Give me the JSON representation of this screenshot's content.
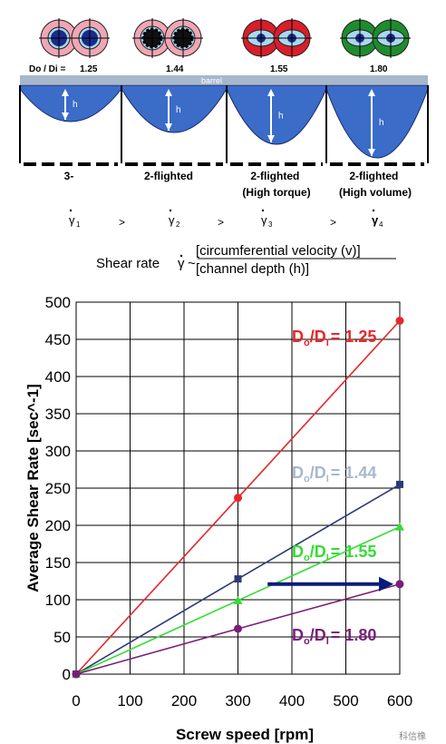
{
  "top": {
    "ratio_prefix": "Do / Di =",
    "ratios": [
      "1.25",
      "1.44",
      "1.55",
      "1.80"
    ],
    "barrel_label": "barrel",
    "channel_label": "h",
    "flight_labels": [
      [
        "3-"
      ],
      [
        "2-flighted"
      ],
      [
        "2-flighted",
        "(High torque)"
      ],
      [
        "2-flighted",
        "(High volume)"
      ]
    ],
    "gamma_symbol": "γ",
    "gamma_subscripts": [
      "1",
      "2",
      "3",
      "4"
    ],
    "gt_symbol": ">",
    "formula": {
      "prefix": "Shear rate",
      "gamma": "γ",
      "tilde": "~",
      "numerator": "[circumferential velocity (v)]",
      "denominator": "[channel depth (h)]"
    }
  },
  "colors": {
    "ring_pink": "#f0a6b4",
    "ring_red": "#d81e2a",
    "ring_green": "#1e8c2c",
    "core_blue": "#1a2a8c",
    "light_blue": "#a8d8ef",
    "barrel": "#a7b8cc",
    "channel_fill": "#3a6cc8"
  },
  "chart_data": {
    "type": "line",
    "xlabel": "Screw speed [rpm]",
    "ylabel": "Average Shear Rate [sec^-1]",
    "xlim": [
      0,
      600
    ],
    "ylim": [
      0,
      500
    ],
    "xticks": [
      0,
      100,
      200,
      300,
      400,
      500,
      600
    ],
    "yticks": [
      0,
      50,
      100,
      150,
      200,
      250,
      300,
      350,
      400,
      450,
      500
    ],
    "grid": true,
    "series": [
      {
        "name": "Do/Di = 1.25",
        "label_main": "D",
        "sub1": "o",
        "mid": "/D",
        "sub2": "I",
        "label_value": "= 1.25",
        "color": "#e8262a",
        "marker": "circle",
        "x": [
          0,
          300,
          600
        ],
        "y": [
          0,
          237,
          475
        ]
      },
      {
        "name": "Do/Di = 1.44",
        "label_main": "D",
        "sub1": "o",
        "mid": "/D",
        "sub2": "I",
        "label_value": "= 1.44",
        "color": "#2e3a78",
        "label_color": "#a7b8cc",
        "marker": "square",
        "x": [
          0,
          300,
          600
        ],
        "y": [
          0,
          128,
          255
        ]
      },
      {
        "name": "Do/Di = 1.55",
        "label_main": "D",
        "sub1": "o",
        "mid": "/D",
        "sub2": "I",
        "label_value": "= 1.55",
        "color": "#33dd33",
        "marker": "triangle",
        "x": [
          0,
          300,
          600
        ],
        "y": [
          0,
          99,
          198
        ]
      },
      {
        "name": "Do/Di = 1.80",
        "label_main": "D",
        "sub1": "o",
        "mid": "/D",
        "sub2": "I",
        "label_value": "= 1.80",
        "color": "#7a1e7a",
        "marker": "circle",
        "x": [
          0,
          300,
          600
        ],
        "y": [
          0,
          61,
          121
        ]
      }
    ],
    "annotation_arrow": {
      "from": [
        355,
        121
      ],
      "to": [
        585,
        121
      ],
      "color": "#0a1a7a"
    },
    "watermark": "科信橡"
  }
}
